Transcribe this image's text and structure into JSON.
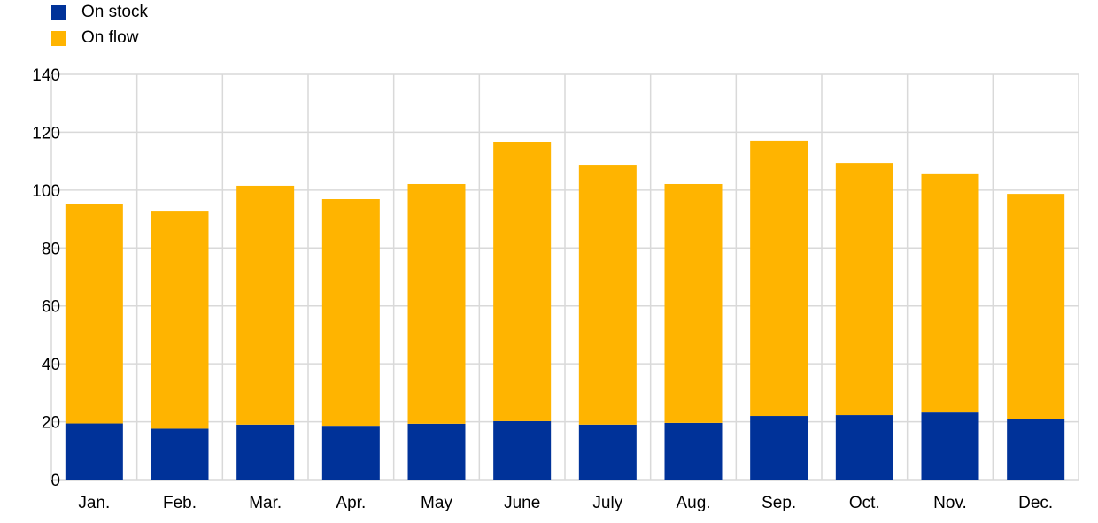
{
  "chart_data": {
    "type": "bar",
    "stacked": true,
    "title": "",
    "xlabel": "",
    "ylabel": "",
    "ylim": [
      0,
      140
    ],
    "yticks": [
      0,
      20,
      40,
      60,
      80,
      100,
      120,
      140
    ],
    "grid": true,
    "legend_position": "top-left",
    "categories": [
      "Jan.",
      "Feb.",
      "Mar.",
      "Apr.",
      "May",
      "June",
      "July",
      "Aug.",
      "Sep.",
      "Oct.",
      "Nov.",
      "Dec."
    ],
    "series": [
      {
        "name": "On stock",
        "color": "#003299",
        "values": [
          19.4,
          17.6,
          19.0,
          18.6,
          19.3,
          20.2,
          19.0,
          19.6,
          22.0,
          22.3,
          23.2,
          20.8
        ]
      },
      {
        "name": "On flow",
        "color": "#FFB400",
        "values": [
          75.7,
          75.3,
          82.5,
          78.3,
          82.8,
          96.3,
          89.5,
          82.5,
          95.1,
          87.1,
          82.3,
          77.9
        ]
      }
    ]
  }
}
